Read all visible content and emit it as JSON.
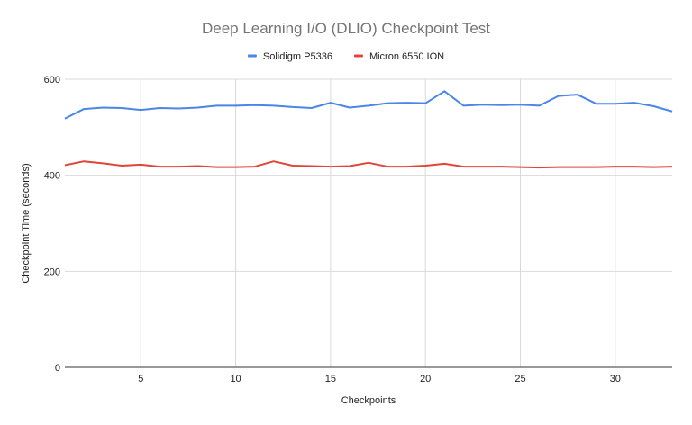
{
  "chart_data": {
    "type": "line",
    "title": "Deep Learning I/O (DLIO) Checkpoint Test",
    "xlabel": "Checkpoints",
    "ylabel": "Checkpoint Time (seconds)",
    "xlim": [
      1,
      33
    ],
    "ylim": [
      0,
      600
    ],
    "x_ticks": [
      5,
      10,
      15,
      20,
      25,
      30
    ],
    "y_ticks": [
      0,
      200,
      400,
      600
    ],
    "grid": true,
    "legend_position": "top",
    "x": [
      1,
      2,
      3,
      4,
      5,
      6,
      7,
      8,
      9,
      10,
      11,
      12,
      13,
      14,
      15,
      16,
      17,
      18,
      19,
      20,
      21,
      22,
      23,
      24,
      25,
      26,
      27,
      28,
      29,
      30,
      31,
      32,
      33
    ],
    "series": [
      {
        "name": "Solidigm P5336",
        "color": "#4a86e8",
        "values": [
          518,
          538,
          541,
          540,
          536,
          540,
          539,
          541,
          545,
          545,
          546,
          545,
          542,
          540,
          551,
          541,
          545,
          550,
          551,
          550,
          575,
          545,
          547,
          546,
          547,
          545,
          565,
          568,
          549,
          549,
          551,
          544,
          533
        ]
      },
      {
        "name": "Micron 6550 ION",
        "color": "#e0453a",
        "values": [
          421,
          429,
          425,
          420,
          422,
          418,
          418,
          419,
          417,
          417,
          418,
          429,
          420,
          419,
          418,
          419,
          426,
          418,
          418,
          420,
          424,
          418,
          418,
          418,
          417,
          416,
          417,
          417,
          417,
          418,
          418,
          417,
          418
        ]
      }
    ]
  }
}
